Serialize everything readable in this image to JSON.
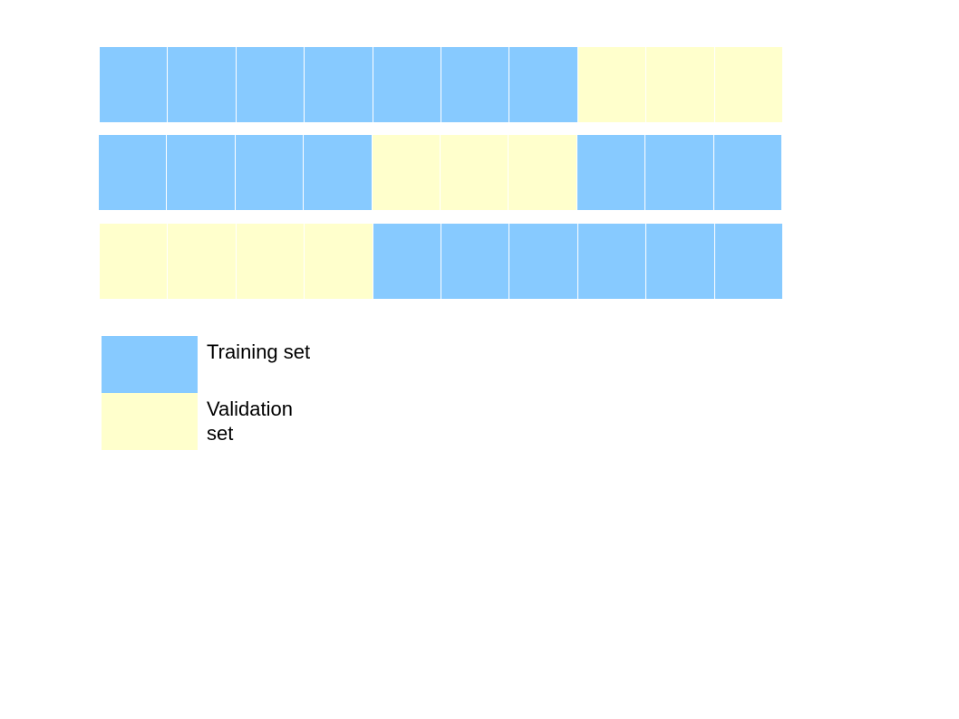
{
  "colors": {
    "training": "#87CAFF",
    "validation": "#FFFFCC"
  },
  "folds": [
    [
      "training",
      "training",
      "training",
      "training",
      "training",
      "training",
      "training",
      "validation",
      "validation",
      "validation"
    ],
    [
      "training",
      "training",
      "training",
      "training",
      "validation",
      "validation",
      "validation",
      "training",
      "training",
      "training"
    ],
    [
      "validation",
      "validation",
      "validation",
      "validation",
      "training",
      "training",
      "training",
      "training",
      "training",
      "training"
    ]
  ],
  "legend": {
    "training_label": "Training set",
    "validation_label": "Validation set"
  }
}
